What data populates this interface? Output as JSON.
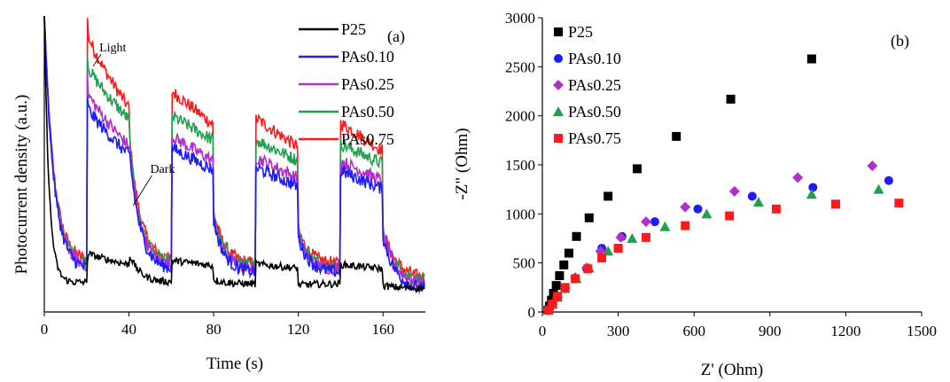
{
  "chart_data": [
    {
      "type": "line",
      "panel_label": "(a)",
      "xlabel": "Time (s)",
      "ylabel": "Photocurrent density (a.u.)",
      "xlim": [
        0,
        180
      ],
      "ylim": [
        0,
        100
      ],
      "xticks": [
        0,
        40,
        80,
        120,
        160
      ],
      "y_tick_labels": "none",
      "grid": false,
      "legend": "top-right",
      "light_on_intervals": [
        [
          20,
          40
        ],
        [
          60,
          80
        ],
        [
          100,
          120
        ],
        [
          140,
          160
        ]
      ],
      "annotations": [
        {
          "text": "Light",
          "x": 26,
          "y": 88,
          "arrow_to": [
            23,
            83
          ]
        },
        {
          "text": "Dark",
          "x": 50,
          "y": 47,
          "arrow_to": [
            42,
            36
          ]
        }
      ],
      "series": [
        {
          "name": "P25",
          "color": "#000000",
          "initial_spike": 100,
          "dark_start": 20,
          "dark_end": 10,
          "light_start": 20,
          "light_end": 16,
          "late_dark_end": 8
        },
        {
          "name": "PAs0.10",
          "color": "#1c1cff",
          "initial_spike": 100,
          "dark_start": 56,
          "dark_end": 14,
          "light_start": 70,
          "light_end": 53,
          "late_dark_end": 7
        },
        {
          "name": "PAs0.25",
          "color": "#b030c8",
          "initial_spike": 100,
          "dark_start": 58,
          "dark_end": 15,
          "light_start": 75,
          "light_end": 56,
          "late_dark_end": 9
        },
        {
          "name": "PAs0.50",
          "color": "#22a050",
          "initial_spike": 100,
          "dark_start": 60,
          "dark_end": 16,
          "light_start": 84,
          "light_end": 65,
          "late_dark_end": 10
        },
        {
          "name": "PAs0.75",
          "color": "#ff1a1a",
          "initial_spike": 100,
          "dark_start": 62,
          "dark_end": 17,
          "light_start": 95,
          "light_end": 69,
          "late_dark_end": 11
        }
      ]
    },
    {
      "type": "scatter",
      "panel_label": "(b)",
      "xlabel": "Z' (Ohm)",
      "ylabel": "-Z\" (Ohm)",
      "xlim": [
        0,
        1500
      ],
      "ylim": [
        0,
        3000
      ],
      "xticks": [
        0,
        300,
        600,
        900,
        1200,
        1500
      ],
      "yticks": [
        0,
        500,
        1000,
        1500,
        2000,
        2500,
        3000
      ],
      "grid": false,
      "legend": "top-left",
      "series": [
        {
          "name": "P25",
          "color": "#000000",
          "marker": "square",
          "x": [
            22,
            28,
            36,
            44,
            55,
            68,
            85,
            105,
            135,
            185,
            260,
            375,
            530,
            745,
            1065
          ],
          "y": [
            20,
            60,
            120,
            190,
            270,
            370,
            480,
            600,
            770,
            960,
            1180,
            1460,
            1790,
            2170,
            2580
          ]
        },
        {
          "name": "PAs0.10",
          "color": "#1c1cff",
          "marker": "circle",
          "x": [
            25,
            40,
            60,
            90,
            130,
            175,
            235,
            315,
            445,
            615,
            830,
            1070,
            1370
          ],
          "y": [
            20,
            80,
            150,
            240,
            340,
            440,
            650,
            770,
            920,
            1050,
            1180,
            1270,
            1340
          ]
        },
        {
          "name": "PAs0.25",
          "color": "#b030c8",
          "marker": "diamond",
          "x": [
            25,
            40,
            60,
            90,
            130,
            175,
            230,
            310,
            410,
            565,
            760,
            1010,
            1305
          ],
          "y": [
            20,
            80,
            150,
            240,
            350,
            450,
            620,
            760,
            920,
            1070,
            1230,
            1370,
            1490
          ]
        },
        {
          "name": "PAs0.50",
          "color": "#22a050",
          "marker": "triangle",
          "x": [
            25,
            40,
            60,
            90,
            135,
            185,
            260,
            355,
            485,
            650,
            855,
            1065,
            1330
          ],
          "y": [
            20,
            80,
            150,
            240,
            340,
            450,
            620,
            750,
            870,
            1000,
            1120,
            1200,
            1250
          ]
        },
        {
          "name": "PAs0.75",
          "color": "#ff1a1a",
          "marker": "square",
          "x": [
            25,
            40,
            60,
            90,
            130,
            180,
            235,
            300,
            410,
            565,
            740,
            925,
            1160,
            1410
          ],
          "y": [
            20,
            80,
            160,
            250,
            340,
            440,
            550,
            650,
            760,
            880,
            980,
            1050,
            1100,
            1110
          ]
        }
      ]
    }
  ]
}
